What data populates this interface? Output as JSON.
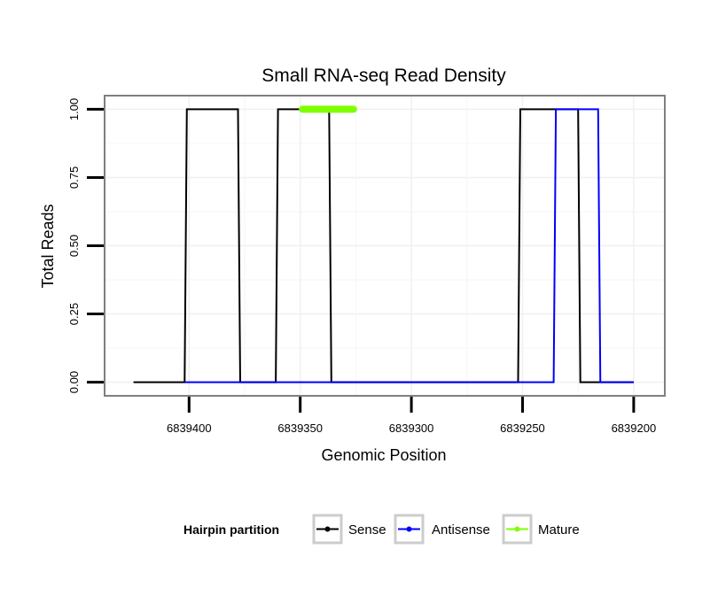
{
  "chart_data": {
    "type": "line",
    "title": "Small RNA-seq Read Density",
    "xlabel": "Genomic Position",
    "ylabel": "Total Reads",
    "x_reversed": true,
    "xlim": [
      6839438,
      6839186
    ],
    "ylim": [
      -0.05,
      1.05
    ],
    "x_ticks": [
      6839400,
      6839350,
      6839300,
      6839250,
      6839200
    ],
    "x_tick_labels": [
      "6839400",
      "6839350",
      "6839300",
      "6839250",
      "6839200"
    ],
    "y_ticks": [
      0,
      0.25,
      0.5,
      0.75,
      1
    ],
    "y_tick_labels": [
      "0.00",
      "0.25",
      "0.50",
      "0.75",
      "1.00"
    ],
    "grid": true,
    "legend": {
      "title": "Hairpin partition",
      "position": "bottom",
      "entries": [
        {
          "name": "Sense",
          "color": "#000000"
        },
        {
          "name": "Antisense",
          "color": "#0000ff"
        },
        {
          "name": "Mature",
          "color": "#7fff00"
        }
      ]
    },
    "series": [
      {
        "name": "Sense",
        "color": "#000000",
        "x": [
          6839425,
          6839402,
          6839401,
          6839378,
          6839377,
          6839361,
          6839360,
          6839337,
          6839336,
          6839252,
          6839251,
          6839225,
          6839224,
          6839200
        ],
        "y": [
          0,
          0,
          1,
          1,
          0,
          0,
          1,
          1,
          0,
          0,
          1,
          1,
          0,
          0
        ]
      },
      {
        "name": "Antisense",
        "color": "#0000ff",
        "x": [
          6839402,
          6839236,
          6839235,
          6839216,
          6839215,
          6839200
        ],
        "y": [
          0,
          0,
          1,
          1,
          0,
          0
        ]
      },
      {
        "name": "Mature",
        "color": "#7fff00",
        "x": [
          6839349,
          6839326
        ],
        "y": [
          1,
          1
        ]
      }
    ]
  }
}
